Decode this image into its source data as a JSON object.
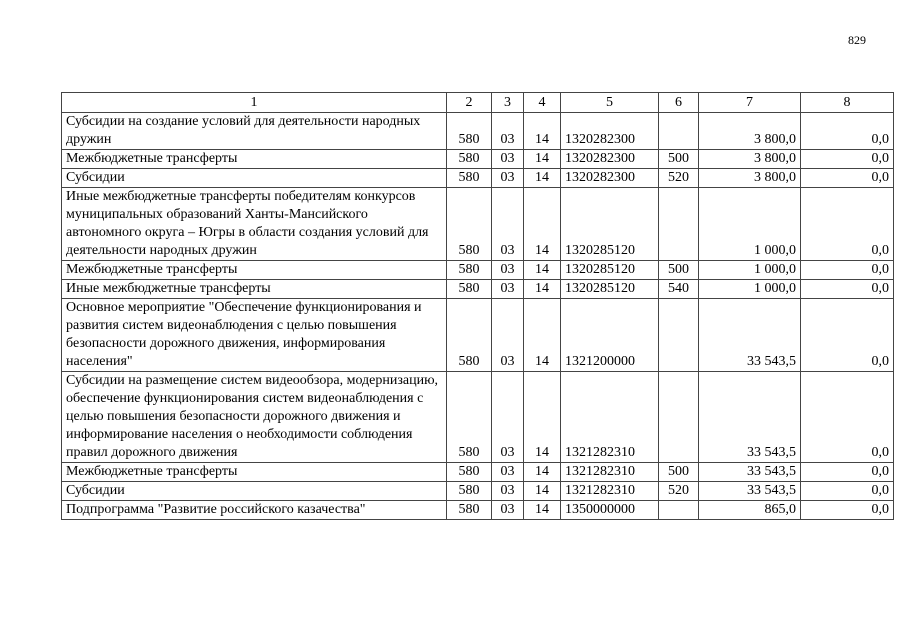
{
  "page_number": "829",
  "table": {
    "headers": [
      "1",
      "2",
      "3",
      "4",
      "5",
      "6",
      "7",
      "8"
    ],
    "rows": [
      {
        "name": "Субсидии на создание условий для деятельности народных дружин",
        "c2": "580",
        "c3": "03",
        "c4": "14",
        "c5": "1320282300",
        "c6": "",
        "c7": "3 800,0",
        "c8": "0,0"
      },
      {
        "name": "Межбюджетные трансферты",
        "c2": "580",
        "c3": "03",
        "c4": "14",
        "c5": "1320282300",
        "c6": "500",
        "c7": "3 800,0",
        "c8": "0,0"
      },
      {
        "name": "Субсидии",
        "c2": "580",
        "c3": "03",
        "c4": "14",
        "c5": "1320282300",
        "c6": "520",
        "c7": "3 800,0",
        "c8": "0,0"
      },
      {
        "name": "Иные межбюджетные трансферты победителям конкурсов муниципальных образований Ханты-Мансийского автономного округа – Югры в области создания условий для деятельности народных дружин",
        "c2": "580",
        "c3": "03",
        "c4": "14",
        "c5": "1320285120",
        "c6": "",
        "c7": "1 000,0",
        "c8": "0,0"
      },
      {
        "name": "Межбюджетные трансферты",
        "c2": "580",
        "c3": "03",
        "c4": "14",
        "c5": "1320285120",
        "c6": "500",
        "c7": "1 000,0",
        "c8": "0,0"
      },
      {
        "name": "Иные межбюджетные трансферты",
        "c2": "580",
        "c3": "03",
        "c4": "14",
        "c5": "1320285120",
        "c6": "540",
        "c7": "1 000,0",
        "c8": "0,0"
      },
      {
        "name": "Основное мероприятие \"Обеспечение функционирования и развития систем видеонаблюдения с целью повышения безопасности дорожного движения, информирования населения\"",
        "c2": "580",
        "c3": "03",
        "c4": "14",
        "c5": "1321200000",
        "c6": "",
        "c7": "33 543,5",
        "c8": "0,0"
      },
      {
        "name": "Субсидии на размещение систем видеообзора, модернизацию, обеспечение функционирования систем видеонаблюдения с целью повышения безопасности дорожного движения и информирование населения о необходимости соблюдения правил дорожного движения",
        "c2": "580",
        "c3": "03",
        "c4": "14",
        "c5": "1321282310",
        "c6": "",
        "c7": "33 543,5",
        "c8": "0,0"
      },
      {
        "name": "Межбюджетные трансферты",
        "c2": "580",
        "c3": "03",
        "c4": "14",
        "c5": "1321282310",
        "c6": "500",
        "c7": "33 543,5",
        "c8": "0,0"
      },
      {
        "name": "Субсидии",
        "c2": "580",
        "c3": "03",
        "c4": "14",
        "c5": "1321282310",
        "c6": "520",
        "c7": "33 543,5",
        "c8": "0,0"
      },
      {
        "name": "Подпрограмма \"Развитие российского казачества\"",
        "c2": "580",
        "c3": "03",
        "c4": "14",
        "c5": "1350000000",
        "c6": "",
        "c7": "865,0",
        "c8": "0,0"
      }
    ]
  }
}
